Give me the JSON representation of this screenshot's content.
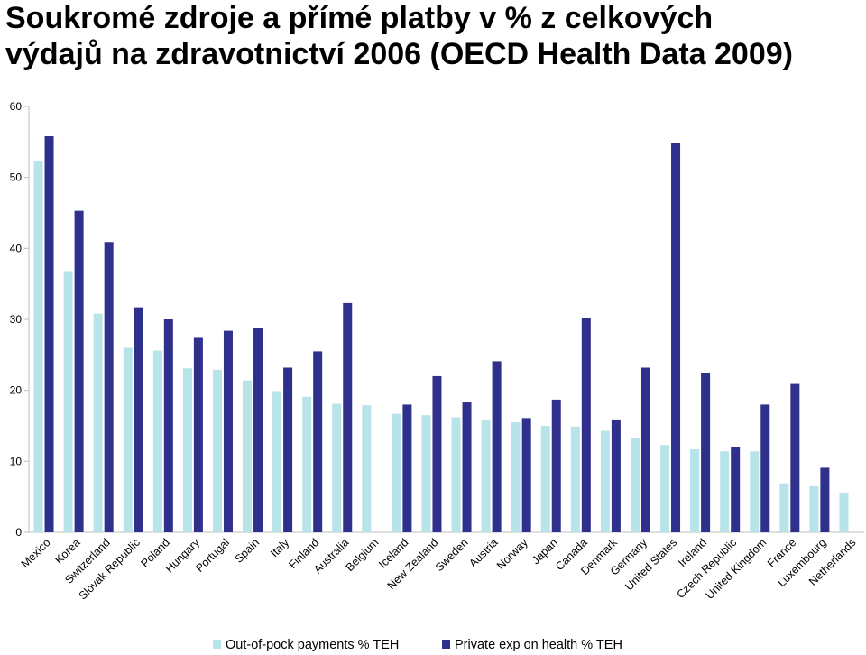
{
  "title_line1": "Soukromé zdroje a přímé platby v % z celkových",
  "title_line2": "výdajů na zdravotnictví 2006 (OECD Health Data 2009)",
  "colors": {
    "out_of_pocket": "#b7e4e8",
    "private": "#2f2f8c",
    "axis": "#bfbfbf",
    "text": "#000000"
  },
  "chart_data": {
    "type": "bar",
    "title": "Soukromé zdroje a přímé platby v % z celkových výdajů na zdravotnictví 2006 (OECD Health Data 2009)",
    "xlabel": "",
    "ylabel": "",
    "ylim": [
      0,
      60
    ],
    "yticks": [
      0,
      10,
      20,
      30,
      40,
      50,
      60
    ],
    "grid": false,
    "legend": "bottom",
    "categories": [
      "Mexico",
      "Korea",
      "Switzerland",
      "Slovak Republic",
      "Poland",
      "Hungary",
      "Portugal",
      "Spain",
      "Italy",
      "Finland",
      "Australia",
      "Belgium",
      "Iceland",
      "New Zealand",
      "Sweden",
      "Austria",
      "Norway",
      "Japan",
      "Canada",
      "Denmark",
      "Germany",
      "United States",
      "Ireland",
      "Czech Republic",
      "United Kingdom",
      "France",
      "Luxembourg",
      "Netherlands"
    ],
    "series": [
      {
        "name": "Out-of-pock payments % TEH",
        "values": [
          52.3,
          36.8,
          30.8,
          26.0,
          25.6,
          23.1,
          22.9,
          21.4,
          19.9,
          19.1,
          18.1,
          17.9,
          16.7,
          16.5,
          16.2,
          15.9,
          15.5,
          15.0,
          14.9,
          14.3,
          13.3,
          12.3,
          11.7,
          11.4,
          11.4,
          6.9,
          6.5,
          5.6
        ]
      },
      {
        "name": "Private exp on health % TEH",
        "values": [
          55.8,
          45.3,
          40.9,
          31.7,
          30.0,
          27.4,
          28.4,
          28.8,
          23.2,
          25.5,
          32.3,
          null,
          18.0,
          22.0,
          18.3,
          24.1,
          16.1,
          18.7,
          30.2,
          15.9,
          23.2,
          54.8,
          22.5,
          12.0,
          18.0,
          20.9,
          9.1,
          null
        ]
      }
    ]
  }
}
